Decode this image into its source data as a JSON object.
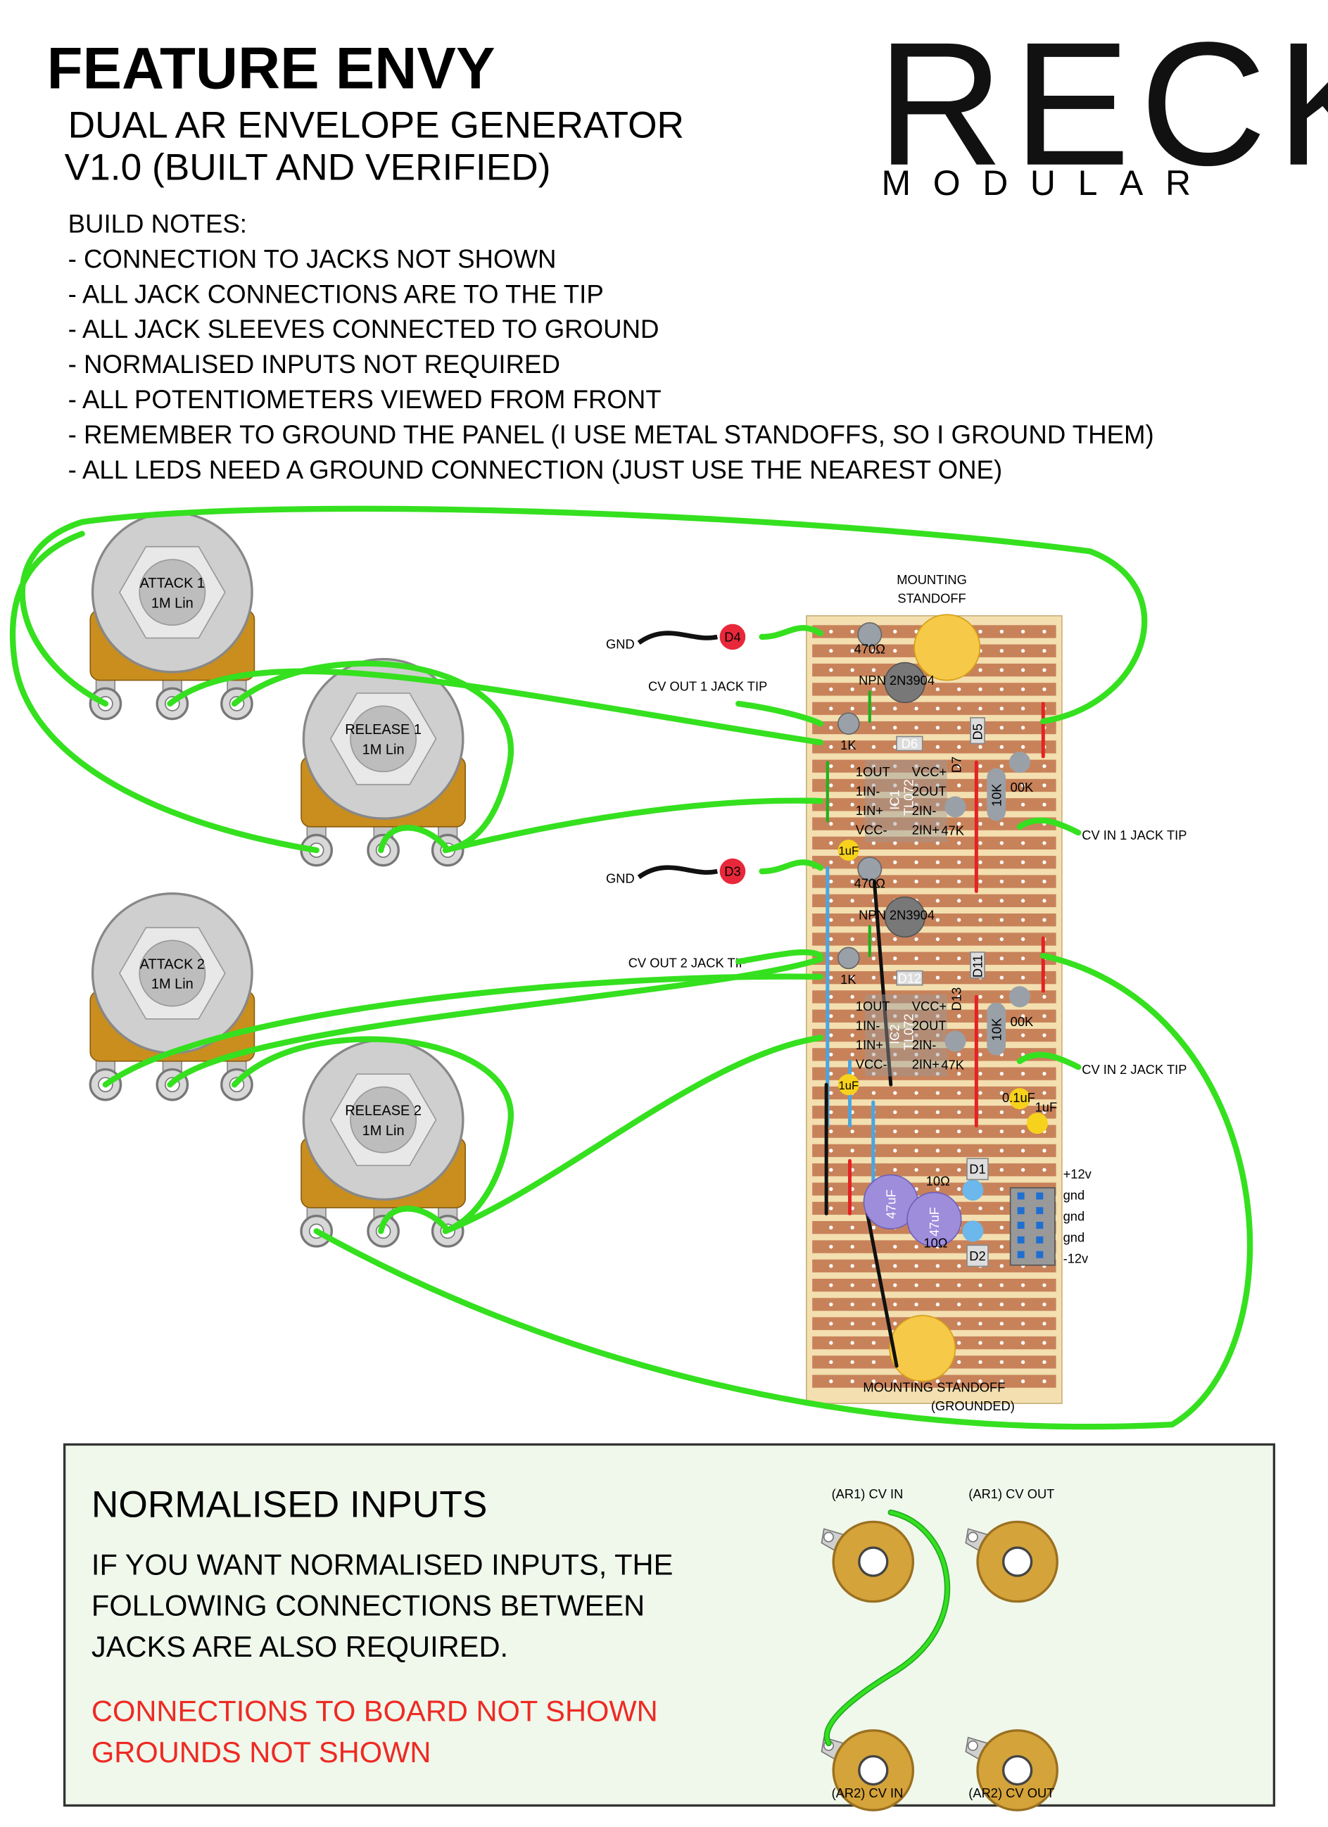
{
  "header": {
    "title": "FEATURE ENVY",
    "subtitle": "DUAL AR ENVELOPE GENERATOR",
    "version": "V1.0  (BUILT AND VERIFIED)"
  },
  "logo": {
    "name": "RECK",
    "sub": "MODULAR"
  },
  "build_notes": {
    "heading": "BUILD NOTES:",
    "items": [
      "- CONNECTION TO JACKS NOT SHOWN",
      "- ALL JACK CONNECTIONS ARE TO THE TIP",
      "- ALL JACK SLEEVES CONNECTED TO GROUND",
      "- NORMALISED INPUTS NOT REQUIRED",
      "- ALL POTENTIOMETERS VIEWED FROM FRONT",
      "- REMEMBER TO GROUND THE PANEL (I USE METAL STANDOFFS, SO I GROUND THEM)",
      "- ALL LEDS NEED A GROUND CONNECTION (JUST USE THE NEAREST ONE)"
    ]
  },
  "pots": [
    {
      "name": "ATTACK 1",
      "value": "1M Lin"
    },
    {
      "name": "RELEASE 1",
      "value": "1M Lin"
    },
    {
      "name": "ATTACK 2",
      "value": "1M Lin"
    },
    {
      "name": "RELEASE 2",
      "value": "1M Lin"
    }
  ],
  "board": {
    "standoff_top": [
      "MOUNTING",
      "STANDOFF"
    ],
    "standoff_bottom": [
      "MOUNTING STANDOFF",
      "(GROUNDED)"
    ],
    "channels": [
      {
        "gnd": "GND",
        "led": "D4",
        "resistor": "470Ω",
        "transistor": "NPN 2N3904",
        "cv_out": "CV OUT 1 JACK TIP",
        "r1k": "1K",
        "ic": "IC1",
        "opamp": "TL072",
        "pins_left": [
          "1OUT",
          "1IN-",
          "1IN+",
          "VCC-"
        ],
        "pins_right": [
          "VCC+",
          "2OUT",
          "2IN-",
          "2IN+"
        ],
        "r47k": "47K",
        "r10k": "10K",
        "r100k": "00K",
        "cap": "1uF",
        "cv_in": "CV IN 1 JACK TIP",
        "diodes": [
          "D6",
          "D5",
          "D7"
        ]
      },
      {
        "gnd": "GND",
        "led": "D3",
        "resistor": "470Ω",
        "transistor": "NPN 2N3904",
        "cv_out": "CV OUT 2 JACK TIP",
        "r1k": "1K",
        "ic": "IC2",
        "opamp": "TL072",
        "pins_left": [
          "1OUT",
          "1IN-",
          "1IN+",
          "VCC-"
        ],
        "pins_right": [
          "VCC+",
          "2OUT",
          "2IN-",
          "2IN+"
        ],
        "r47k": "47K",
        "r10k": "10K",
        "r100k": "00K",
        "cap": "1uF",
        "cv_in": "CV IN 2 JACK TIP",
        "diodes": [
          "D12",
          "D11",
          "D13"
        ]
      }
    ],
    "power": {
      "small_caps": [
        "0.1uF",
        "1uF"
      ],
      "caps": [
        "47uF",
        "47uF"
      ],
      "resistors": [
        "10Ω",
        "10Ω"
      ],
      "diodes": [
        "D1",
        "D2"
      ],
      "header": [
        "+12v",
        "gnd",
        "gnd",
        "gnd",
        "-12v"
      ]
    }
  },
  "normalised": {
    "title": "NORMALISED INPUTS",
    "text": [
      "IF YOU WANT NORMALISED INPUTS, THE",
      "FOLLOWING CONNECTIONS BETWEEN",
      "JACKS ARE ALSO REQUIRED."
    ],
    "warnings": [
      "CONNECTIONS TO BOARD NOT SHOWN",
      "GROUNDS NOT SHOWN"
    ],
    "jacks": [
      "(AR1) CV IN",
      "(AR1) CV OUT",
      "(AR2) CV IN",
      "(AR2) CV OUT"
    ]
  }
}
